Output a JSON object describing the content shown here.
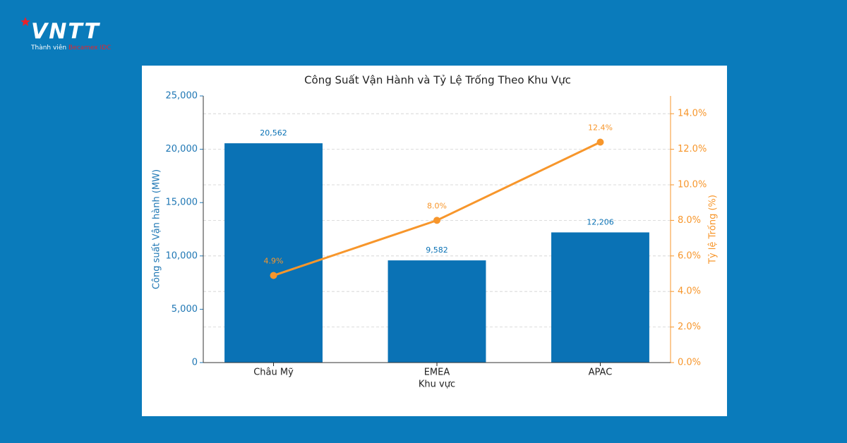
{
  "logo": {
    "name": "VNTT",
    "tagline": "Thành viên",
    "tagline_brand": "Becamex IDC"
  },
  "chart_data": {
    "type": "combo",
    "title": "Công Suất Vận Hành và Tỷ Lệ Trống Theo Khu Vực",
    "x_label": "Khu vực",
    "y_label": "Công suất Vận hành (MW)",
    "y2_label": "Tỷ lệ Trống (%)",
    "categories": [
      "Châu Mỹ",
      "EMEA",
      "APAC"
    ],
    "series": [
      {
        "type": "bar",
        "axis": "y",
        "color": "#0a72b5",
        "values": [
          20562,
          9582,
          12206
        ],
        "value_labels": [
          "20,562",
          "9,582",
          "12,206"
        ]
      },
      {
        "type": "line",
        "axis": "y2",
        "color": "#f7962b",
        "values": [
          4.9,
          8.0,
          12.4
        ],
        "value_labels": [
          "4.9%",
          "8.0%",
          "12.4%"
        ]
      }
    ],
    "ylim": [
      0,
      25000
    ],
    "yticks": [
      0,
      {
        "value": 5000,
        "label": "5,000"
      },
      {
        "value": 10000,
        "label": "10,000"
      },
      {
        "value": 15000,
        "label": "15,000"
      },
      {
        "value": 20000,
        "label": "20,000"
      },
      {
        "value": 25000,
        "label": "25,000"
      }
    ],
    "y2lim": [
      0,
      15
    ],
    "y2ticks": [
      {
        "value": 0,
        "label": "0.0%"
      },
      {
        "value": 2,
        "label": "2.0%"
      },
      {
        "value": 4,
        "label": "4.0%"
      },
      {
        "value": 6,
        "label": "6.0%"
      },
      {
        "value": 8,
        "label": "8.0%"
      },
      {
        "value": 10,
        "label": "10.0%"
      },
      {
        "value": 12,
        "label": "12.0%"
      },
      {
        "value": 14,
        "label": "14.0%"
      }
    ],
    "y_color": "#1f77b4",
    "y2_color": "#f7962b",
    "grid": true
  }
}
